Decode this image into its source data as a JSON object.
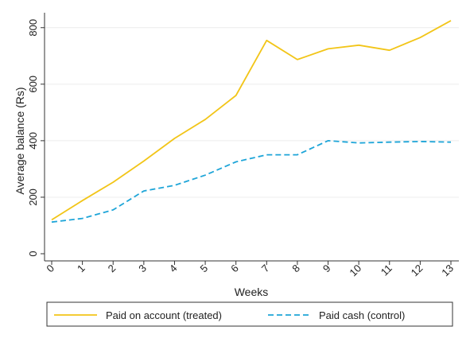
{
  "chart_data": {
    "type": "line",
    "title": "",
    "xlabel": "Weeks",
    "ylabel": "Average balance (Rs)",
    "x": [
      0,
      1,
      2,
      3,
      4,
      5,
      6,
      7,
      8,
      9,
      10,
      11,
      12,
      13
    ],
    "xlim": [
      0,
      13
    ],
    "ylim": [
      0,
      850
    ],
    "yticks": [
      0,
      200,
      400,
      600,
      800
    ],
    "grid": "horizontal",
    "legend_position": "bottom",
    "series": [
      {
        "name": "Paid on account (treated)",
        "color": "#f2c518",
        "style": "solid",
        "values": [
          120,
          188,
          253,
          328,
          408,
          475,
          560,
          755,
          687,
          725,
          738,
          720,
          765,
          825
        ]
      },
      {
        "name": "Paid cash (control)",
        "color": "#1ea5d8",
        "style": "dashed",
        "values": [
          112,
          125,
          155,
          222,
          242,
          278,
          325,
          350,
          350,
          400,
          392,
          395,
          397,
          395
        ]
      }
    ]
  }
}
